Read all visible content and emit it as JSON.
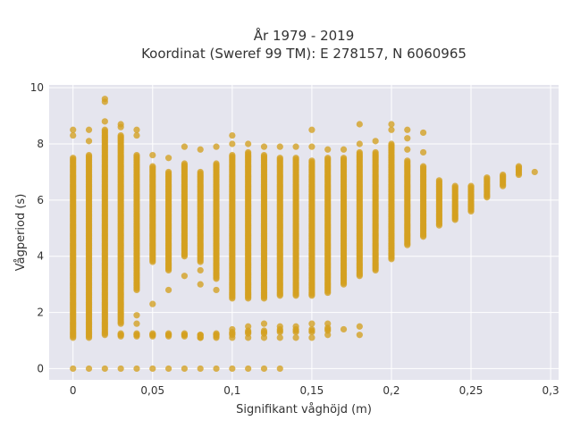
{
  "chart_data": {
    "type": "scatter",
    "title_line1": "År 1979 - 2019",
    "title_line2": "Koordinat (Sweref 99 TM): E 278157, N 6060965",
    "xlabel": "Signifikant våghöjd (m)",
    "ylabel": "Vågperiod (s)",
    "xlim": [
      -0.015,
      0.305
    ],
    "ylim": [
      -0.4,
      10.1
    ],
    "grid": true,
    "xticks": [
      0,
      0.05,
      0.1,
      0.15,
      0.2,
      0.25,
      0.3
    ],
    "xtick_labels": [
      "0",
      "0,05",
      "0,1",
      "0,15",
      "0,2",
      "0,25",
      "0,3"
    ],
    "yticks": [
      0,
      2,
      4,
      6,
      8,
      10
    ],
    "ytick_labels": [
      "0",
      "2",
      "4",
      "6",
      "8",
      "10"
    ],
    "series": [
      {
        "color": "#d4a020",
        "columns": [
          {
            "x": 0.0,
            "min": 1.1,
            "max": 7.5,
            "zero": true,
            "extras": [
              8.3,
              8.5
            ]
          },
          {
            "x": 0.01,
            "min": 1.1,
            "max": 7.6,
            "zero": true,
            "extras": [
              8.1,
              8.5
            ]
          },
          {
            "x": 0.02,
            "min": 1.2,
            "max": 8.5,
            "zero": true,
            "extras": [
              9.5,
              9.6,
              8.8
            ]
          },
          {
            "x": 0.03,
            "min": 1.6,
            "max": 8.3,
            "zero": true,
            "extras": [
              1.2,
              8.6,
              8.7
            ]
          },
          {
            "x": 0.04,
            "min": 2.8,
            "max": 7.6,
            "zero": true,
            "extras": [
              1.2,
              1.6,
              1.9,
              8.3,
              8.5
            ]
          },
          {
            "x": 0.05,
            "min": 3.8,
            "max": 7.2,
            "zero": true,
            "extras": [
              1.2,
              2.3,
              7.6
            ]
          },
          {
            "x": 0.06,
            "min": 3.5,
            "max": 7.0,
            "zero": true,
            "extras": [
              1.2,
              2.8,
              7.5
            ]
          },
          {
            "x": 0.07,
            "min": 4.0,
            "max": 7.3,
            "zero": true,
            "extras": [
              1.2,
              3.3,
              7.9
            ]
          },
          {
            "x": 0.08,
            "min": 3.8,
            "max": 7.0,
            "zero": true,
            "extras": [
              1.1,
              1.2,
              3.0,
              3.5,
              7.8
            ]
          },
          {
            "x": 0.09,
            "min": 3.2,
            "max": 7.3,
            "zero": true,
            "extras": [
              1.1,
              1.2,
              2.8,
              7.9
            ]
          },
          {
            "x": 0.1,
            "min": 2.5,
            "max": 7.6,
            "zero": true,
            "extras": [
              1.1,
              1.4,
              8.0,
              8.3
            ]
          },
          {
            "x": 0.11,
            "min": 2.5,
            "max": 7.7,
            "zero": true,
            "extras": [
              1.1,
              1.5,
              8.0
            ]
          },
          {
            "x": 0.12,
            "min": 2.5,
            "max": 7.6,
            "zero": true,
            "extras": [
              1.1,
              1.6,
              7.9
            ]
          },
          {
            "x": 0.13,
            "min": 2.6,
            "max": 7.5,
            "zero": true,
            "extras": [
              1.1,
              1.5,
              7.9
            ]
          },
          {
            "x": 0.14,
            "min": 2.6,
            "max": 7.5,
            "zero": false,
            "extras": [
              1.1,
              1.5,
              7.9
            ]
          },
          {
            "x": 0.15,
            "min": 2.6,
            "max": 7.4,
            "zero": false,
            "extras": [
              1.1,
              1.6,
              7.9,
              8.5
            ]
          },
          {
            "x": 0.16,
            "min": 2.7,
            "max": 7.5,
            "zero": false,
            "extras": [
              1.2,
              1.6,
              7.8
            ]
          },
          {
            "x": 0.17,
            "min": 3.0,
            "max": 7.5,
            "zero": false,
            "extras": [
              1.4,
              7.8
            ]
          },
          {
            "x": 0.18,
            "min": 3.3,
            "max": 7.7,
            "zero": false,
            "extras": [
              1.2,
              1.5,
              8.0,
              8.7
            ]
          },
          {
            "x": 0.19,
            "min": 3.5,
            "max": 7.7,
            "zero": false,
            "extras": [
              8.1
            ]
          },
          {
            "x": 0.2,
            "min": 3.9,
            "max": 8.0,
            "zero": false,
            "extras": [
              8.5,
              8.7
            ]
          },
          {
            "x": 0.21,
            "min": 4.4,
            "max": 7.4,
            "zero": false,
            "extras": [
              7.8,
              8.2,
              8.5
            ]
          },
          {
            "x": 0.22,
            "min": 4.7,
            "max": 7.2,
            "zero": false,
            "extras": [
              7.7,
              8.4
            ]
          },
          {
            "x": 0.23,
            "min": 5.1,
            "max": 6.7,
            "zero": false,
            "extras": []
          },
          {
            "x": 0.24,
            "min": 5.3,
            "max": 6.5,
            "zero": false,
            "extras": []
          },
          {
            "x": 0.25,
            "min": 5.6,
            "max": 6.5,
            "zero": false,
            "extras": []
          },
          {
            "x": 0.26,
            "min": 6.1,
            "max": 6.8,
            "zero": false,
            "extras": []
          },
          {
            "x": 0.27,
            "min": 6.5,
            "max": 6.9,
            "zero": false,
            "extras": []
          },
          {
            "x": 0.28,
            "min": 6.9,
            "max": 7.2,
            "zero": false,
            "extras": []
          },
          {
            "x": 0.29,
            "min": 7.0,
            "max": 7.0,
            "zero": false,
            "extras": []
          }
        ],
        "lower_band": [
          {
            "x": 0.03,
            "y": 1.2
          },
          {
            "x": 0.04,
            "y": 1.2
          },
          {
            "x": 0.05,
            "y": 1.2
          },
          {
            "x": 0.06,
            "y": 1.2
          },
          {
            "x": 0.07,
            "y": 1.2
          },
          {
            "x": 0.08,
            "y": 1.15
          },
          {
            "x": 0.09,
            "y": 1.2
          },
          {
            "x": 0.1,
            "y": 1.25
          },
          {
            "x": 0.11,
            "y": 1.3
          },
          {
            "x": 0.12,
            "y": 1.3
          },
          {
            "x": 0.13,
            "y": 1.35
          },
          {
            "x": 0.14,
            "y": 1.35
          },
          {
            "x": 0.15,
            "y": 1.35
          },
          {
            "x": 0.16,
            "y": 1.4
          }
        ]
      }
    ]
  }
}
